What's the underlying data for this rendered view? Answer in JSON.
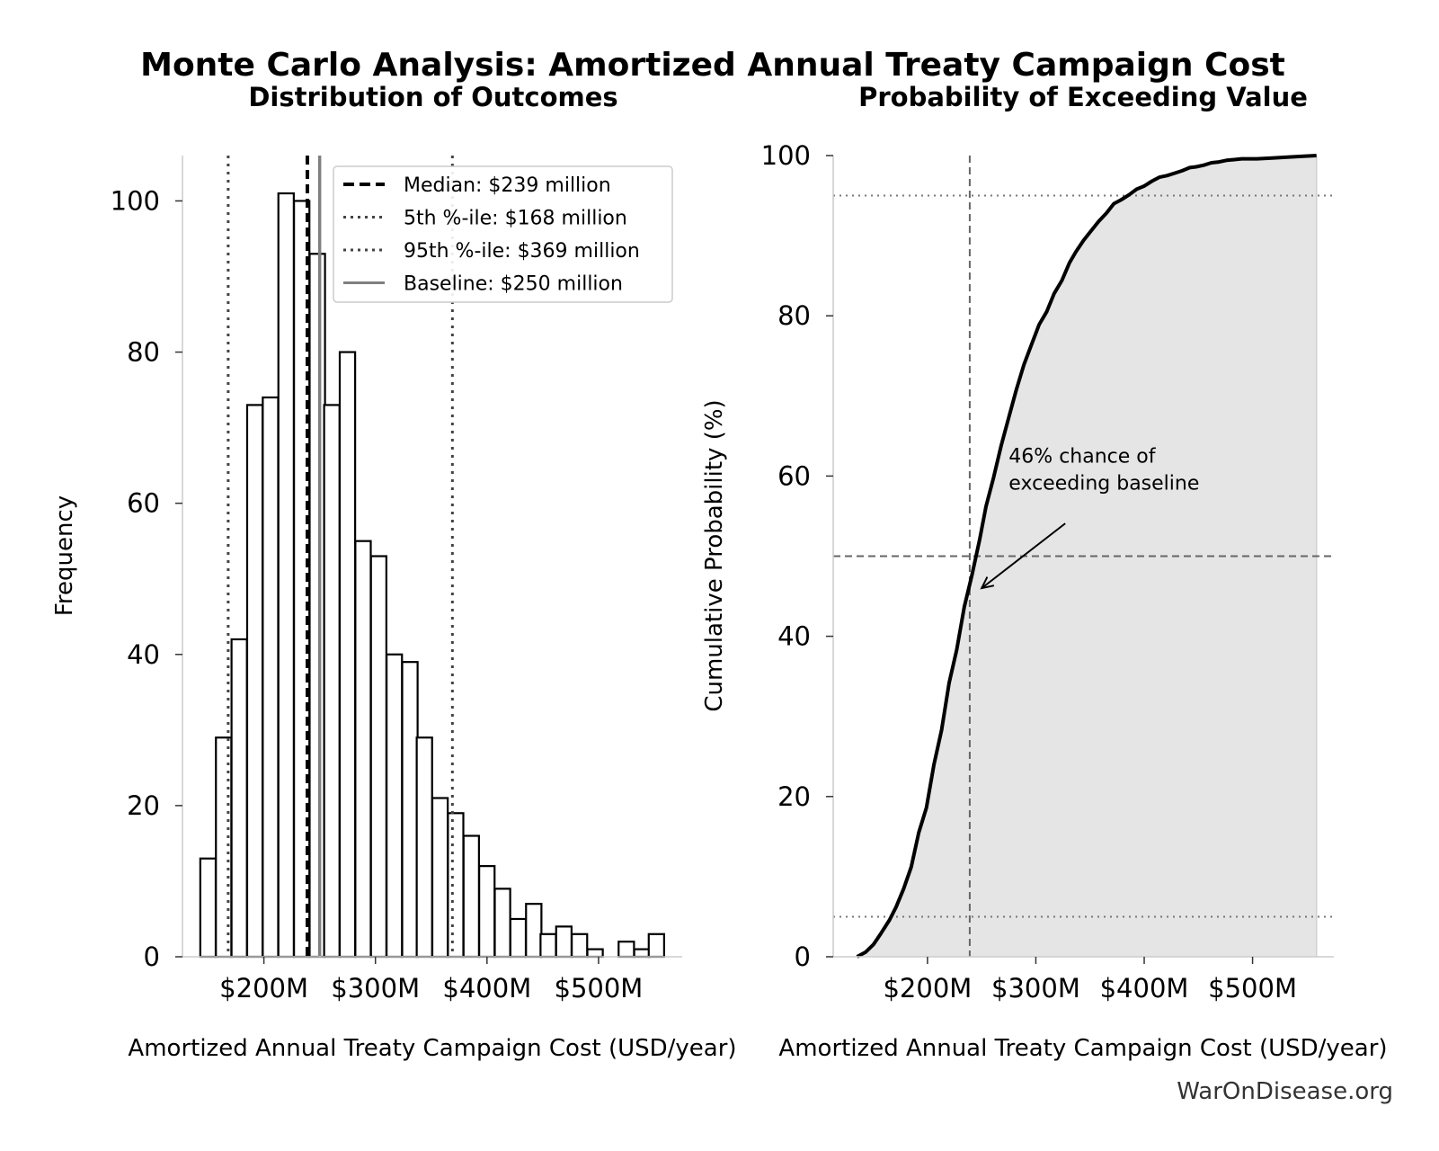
{
  "figure": {
    "suptitle": "Monte Carlo Analysis: Amortized Annual Treaty Campaign Cost",
    "watermark": "WarOnDisease.org"
  },
  "chart_data": [
    {
      "type": "bar",
      "subtype": "histogram",
      "title": "Distribution of Outcomes",
      "xlabel": "Amortized Annual Treaty Campaign Cost (USD/year)",
      "ylabel": "Frequency",
      "xlim": [
        127,
        575
      ],
      "ylim": [
        0,
        106
      ],
      "xticks": [
        200,
        300,
        400,
        500
      ],
      "xtick_labels": [
        "$200M",
        "$300M",
        "$400M",
        "$500M"
      ],
      "yticks": [
        0,
        20,
        40,
        60,
        80,
        100
      ],
      "bin_width": 13.8,
      "bin_starts": [
        143,
        157,
        171,
        185,
        199,
        213,
        227,
        241,
        254,
        268,
        282,
        296,
        310,
        324,
        337,
        351,
        365,
        379,
        393,
        407,
        421,
        435,
        448,
        462,
        476,
        490,
        504,
        518,
        532,
        545
      ],
      "values": [
        13,
        29,
        42,
        73,
        74,
        101,
        100,
        93,
        73,
        80,
        55,
        53,
        40,
        39,
        29,
        21,
        19,
        16,
        12,
        9,
        5,
        7,
        3,
        4,
        3,
        1,
        0,
        2,
        1,
        3
      ],
      "reference_lines": [
        {
          "label": "Median: $239 million",
          "x": 239,
          "style": "dashed",
          "color": "#000000"
        },
        {
          "label": "5th %-ile: $168 million",
          "x": 168,
          "style": "dotted",
          "color": "#444444"
        },
        {
          "label": "95th %-ile: $369 million",
          "x": 369,
          "style": "dotted",
          "color": "#444444"
        },
        {
          "label": "Baseline: $250 million",
          "x": 250,
          "style": "solid",
          "color": "#808080"
        }
      ],
      "legend_position": "top-right",
      "grid": false
    },
    {
      "type": "area",
      "subtype": "cumulative distribution",
      "title": "Probability of Exceeding Value",
      "xlabel": "Amortized Annual Treaty Campaign Cost (USD/year)",
      "ylabel": "Cumulative Probability (%)",
      "xlim": [
        113,
        575
      ],
      "ylim": [
        0,
        100
      ],
      "xticks": [
        200,
        300,
        400,
        500
      ],
      "xtick_labels": [
        "$200M",
        "$300M",
        "$400M",
        "$500M"
      ],
      "yticks": [
        0,
        20,
        40,
        60,
        80,
        100
      ],
      "x": [
        135,
        143,
        150,
        157,
        165,
        171,
        178,
        185,
        192,
        199,
        206,
        213,
        220,
        227,
        234,
        241,
        248,
        254,
        261,
        268,
        275,
        282,
        289,
        296,
        303,
        310,
        317,
        324,
        331,
        337,
        344,
        351,
        358,
        365,
        372,
        379,
        386,
        393,
        400,
        407,
        414,
        421,
        428,
        435,
        442,
        448,
        455,
        462,
        469,
        476,
        483,
        490,
        504,
        518,
        532,
        545,
        559
      ],
      "y": [
        0,
        0.6,
        1.5,
        2.9,
        4.6,
        6.2,
        8.5,
        11.2,
        15.5,
        18.6,
        24.0,
        28.3,
        34.2,
        38.3,
        43.7,
        47.6,
        52.0,
        56.2,
        59.8,
        63.8,
        67.3,
        70.8,
        73.9,
        76.4,
        78.9,
        80.5,
        82.8,
        84.4,
        86.6,
        88.0,
        89.4,
        90.6,
        91.8,
        92.8,
        94.0,
        94.5,
        95.1,
        95.8,
        96.2,
        96.8,
        97.3,
        97.5,
        97.8,
        98.1,
        98.5,
        98.6,
        98.8,
        99.1,
        99.2,
        99.4,
        99.5,
        99.6,
        99.6,
        99.7,
        99.8,
        99.9,
        100
      ],
      "reference_lines": [
        {
          "orientation": "vertical",
          "x": 239,
          "style": "dashed"
        },
        {
          "orientation": "horizontal",
          "y": 50,
          "style": "dashed"
        },
        {
          "orientation": "horizontal",
          "y": 95,
          "style": "dotted"
        },
        {
          "orientation": "horizontal",
          "y": 5,
          "style": "dotted"
        }
      ],
      "annotation": {
        "text_lines": [
          "46% chance of",
          "exceeding baseline"
        ],
        "point_x": 250,
        "point_y": 46,
        "text_x": 275,
        "text_y": 60
      },
      "fill_color": "#e5e5e5",
      "grid": false
    }
  ]
}
